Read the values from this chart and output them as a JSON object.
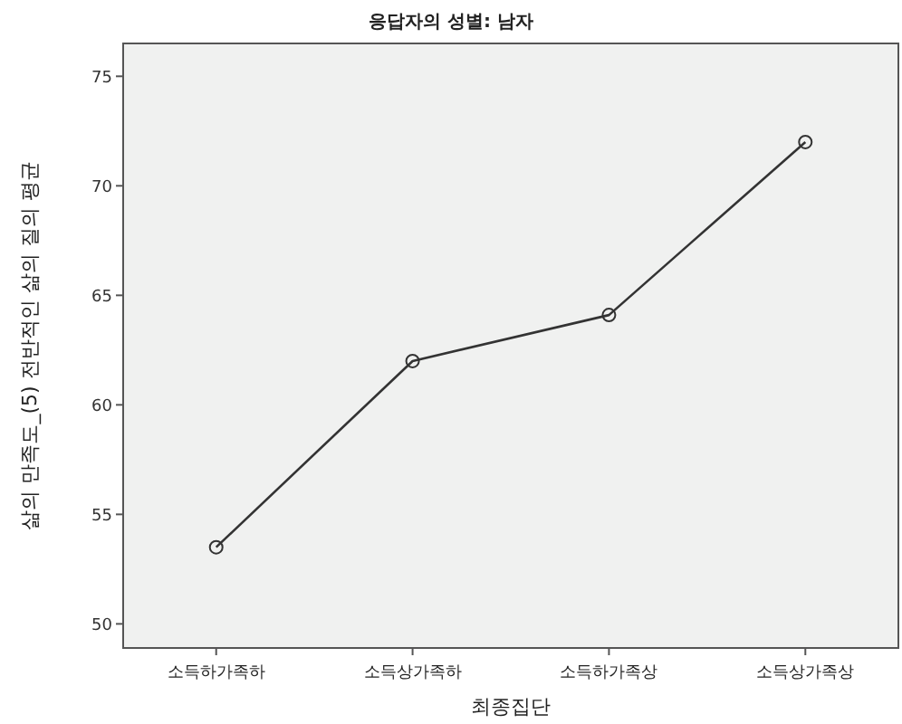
{
  "chart_data": {
    "type": "line",
    "title": "응답자의 성별: 남자",
    "xlabel": "최종집단",
    "ylabel": "삶의 만족도_(5) 전반적인 삶의 질의 평균",
    "categories": [
      "소득하가족하",
      "소득상가족하",
      "소득하가족상",
      "소득상가족상"
    ],
    "series": [
      {
        "color": "#333333",
        "values": [
          53.5,
          62.0,
          64.1,
          72.0
        ]
      }
    ],
    "ylim": [
      48.9,
      76.5
    ],
    "yticks": [
      50,
      55,
      60,
      65,
      70,
      75
    ],
    "grid": false,
    "marker": "circle",
    "line_style": "solid"
  }
}
